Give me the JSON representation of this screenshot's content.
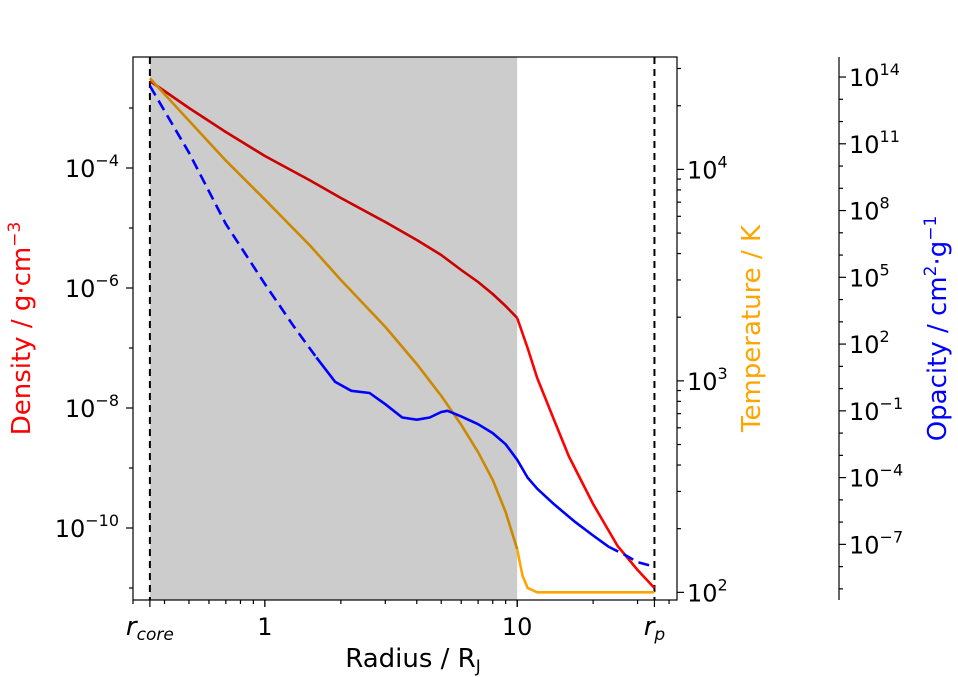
{
  "chart_data": {
    "type": "line",
    "xlabel": "Radius / R",
    "xlabel_sub": "J",
    "x_scale": "log",
    "xlim": [
      0.3,
      43
    ],
    "x_ticks": [
      {
        "value": 0.35,
        "label": "r",
        "sub": "core"
      },
      {
        "value": 1,
        "label": "1",
        "sub": ""
      },
      {
        "value": 10,
        "label": "10",
        "sub": ""
      },
      {
        "value": 35,
        "label": "r",
        "sub": "p"
      }
    ],
    "shaded_region": {
      "x": [
        0.35,
        10
      ],
      "color": "#cccccc"
    },
    "vlines": [
      0.35,
      35
    ],
    "axes": [
      {
        "id": "density",
        "ylabel": "Density / g·cm",
        "ylabel_sup": "−3",
        "color": "#ff0000",
        "scale": "log",
        "ylim_exp": [
          -11.2,
          -2.15
        ],
        "ticks": [
          {
            "base": "10",
            "exp": "−4"
          },
          {
            "base": "10",
            "exp": "−6"
          },
          {
            "base": "10",
            "exp": "−8"
          },
          {
            "base": "10",
            "exp": "−10"
          }
        ],
        "tick_exps": [
          -4,
          -6,
          -8,
          -10
        ]
      },
      {
        "id": "temperature",
        "ylabel": "Temperature / K",
        "color": "#ffa500",
        "scale": "log",
        "ylim": [
          92,
          34000
        ],
        "ticks": [
          {
            "base": "10",
            "exp": "4"
          },
          {
            "base": "10",
            "exp": "3"
          },
          {
            "base": "10",
            "exp": "2"
          }
        ],
        "tick_exps": [
          4,
          3,
          2
        ]
      },
      {
        "id": "opacity",
        "ylabel": "Opacity / cm",
        "ylabel_sup": "2",
        "ylabel_mid": "·g",
        "ylabel_sup2": "−1",
        "color": "#0000ff",
        "scale": "log",
        "ylim_exp": [
          -9.5,
          14.9
        ],
        "ticks": [
          {
            "base": "10",
            "exp": "14"
          },
          {
            "base": "10",
            "exp": "11"
          },
          {
            "base": "10",
            "exp": "8"
          },
          {
            "base": "10",
            "exp": "5"
          },
          {
            "base": "10",
            "exp": "2"
          },
          {
            "base": "10",
            "exp": "−1"
          },
          {
            "base": "10",
            "exp": "−4"
          },
          {
            "base": "10",
            "exp": "−7"
          }
        ],
        "tick_exps": [
          14,
          11,
          8,
          5,
          2,
          -1,
          -4,
          -7
        ]
      }
    ],
    "series": [
      {
        "axis": "density",
        "color_inner": "#cc0000",
        "color_outer": "#ff0000",
        "split_x": 10,
        "x": [
          0.35,
          0.5,
          0.7,
          1.0,
          1.5,
          2.0,
          3.0,
          4.0,
          5.0,
          6.0,
          7.0,
          8.0,
          9.0,
          10.0,
          11.0,
          12.0,
          14.0,
          16.0,
          20.0,
          25.0,
          30.0,
          35.0
        ],
        "y_exp": [
          -2.55,
          -3.0,
          -3.4,
          -3.8,
          -4.2,
          -4.5,
          -4.9,
          -5.2,
          -5.45,
          -5.7,
          -5.9,
          -6.1,
          -6.3,
          -6.5,
          -7.0,
          -7.5,
          -8.2,
          -8.8,
          -9.6,
          -10.3,
          -10.7,
          -11.0
        ]
      },
      {
        "axis": "temperature",
        "color_inner": "#cc8800",
        "color_outer": "#ffa500",
        "split_x": 10,
        "x": [
          0.35,
          0.5,
          0.7,
          1.0,
          1.5,
          2.0,
          3.0,
          4.0,
          5.0,
          6.0,
          7.0,
          8.0,
          9.0,
          10.0,
          10.5,
          11.0,
          12.0,
          15.0,
          20.0,
          25.0,
          30.0,
          35.0
        ],
        "y": [
          27000,
          17000,
          11000,
          7200,
          4400,
          3000,
          1800,
          1200,
          850,
          620,
          460,
          340,
          240,
          160,
          120,
          105,
          100,
          100,
          100,
          100,
          100,
          100
        ]
      },
      {
        "axis": "opacity",
        "color": "#0000ff",
        "segments": [
          {
            "dashed": true,
            "x": [
              0.35,
              0.5,
              0.7,
              1.0,
              1.3,
              1.6
            ],
            "y_exp": [
              13.6,
              10.6,
              7.4,
              4.7,
              2.8,
              1.4
            ]
          },
          {
            "dashed": false,
            "x": [
              1.6,
              1.9,
              2.2,
              2.6,
              3.0,
              3.5,
              4.0,
              4.5,
              5.0,
              5.3,
              6.0,
              7.0,
              8.0,
              9.0,
              10.0,
              11.0,
              12.0,
              14.0,
              17.0,
              20.0,
              23.0
            ],
            "y_exp": [
              1.4,
              0.3,
              -0.1,
              -0.2,
              -0.7,
              -1.3,
              -1.4,
              -1.3,
              -1.05,
              -1.0,
              -1.25,
              -1.6,
              -2.0,
              -2.5,
              -3.2,
              -4.0,
              -4.5,
              -5.2,
              -6.0,
              -6.6,
              -7.1
            ]
          },
          {
            "dashed": true,
            "x": [
              23.0,
              27.0,
              30.0,
              35.0
            ],
            "y_exp": [
              -7.1,
              -7.5,
              -7.8,
              -8.0
            ]
          }
        ]
      }
    ]
  }
}
